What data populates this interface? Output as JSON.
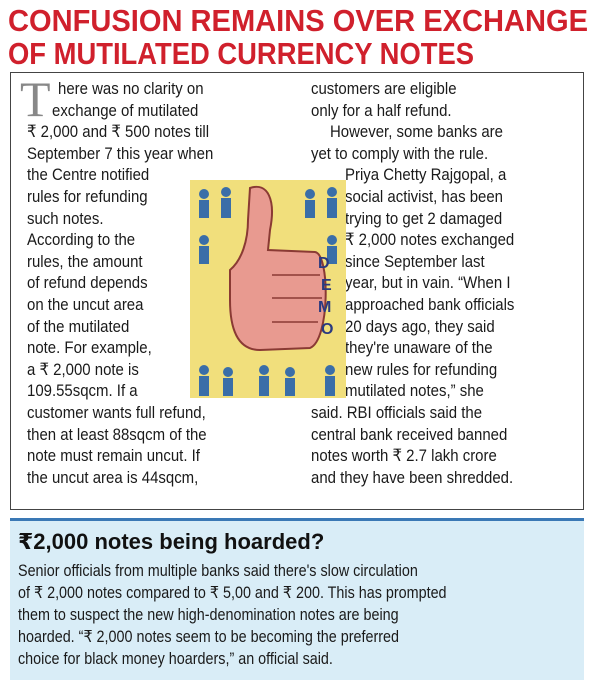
{
  "headline": {
    "lines": [
      "CONFUSION REMAINS OVER EXCHANGE",
      "OF MUTILATED CURRENCY NOTES"
    ]
  },
  "article": {
    "drop_cap": "T",
    "left_column": [
      "here was no clarity on",
      "exchange of mutilated",
      "₹ 2,000 and ₹ 500 notes till",
      "September 7 this year when",
      "the Centre notified",
      "rules for refunding",
      "such notes.",
      "According to the",
      "rules, the amount",
      "of refund depends",
      "on the uncut area",
      "of the mutilated",
      "note. For example,",
      "a ₹ 2,000 note is",
      "109.55sqcm. If a",
      "customer wants full refund,",
      "then at least 88sqcm of the",
      "note must remain uncut. If",
      "the uncut area is 44sqcm,"
    ],
    "right_column": [
      "customers are eligible",
      "only for a half refund.",
      "However, some banks are",
      "yet to comply with the rule.",
      "Priya Chetty Rajgopal, a",
      "social activist, has been",
      "trying to get 2 damaged",
      "₹ 2,000 notes exchanged",
      "since September last",
      "year, but in vain. “When I",
      "approached bank officials",
      "20 days ago, they said",
      "they're unaware of the",
      "new rules for refunding",
      "mutilated notes,” she",
      "said. RBI officials said the",
      "central bank received banned",
      "notes worth ₹ 2.7 lakh crore",
      "and they have been shredded."
    ]
  },
  "illustration": {
    "letters": [
      "D",
      "E",
      "M",
      "O"
    ]
  },
  "sidebar": {
    "title": "₹2,000 notes being hoarded?",
    "lines": [
      "Senior officials from multiple banks said there's slow circulation",
      "of ₹ 2,000 notes compared to ₹ 5,00 and ₹ 200. This has prompted",
      "them to suspect the new high-denomination notes are being",
      "hoarded. “₹ 2,000 notes seem to be becoming the preferred",
      "choice for black money hoarders,” an official said."
    ]
  }
}
